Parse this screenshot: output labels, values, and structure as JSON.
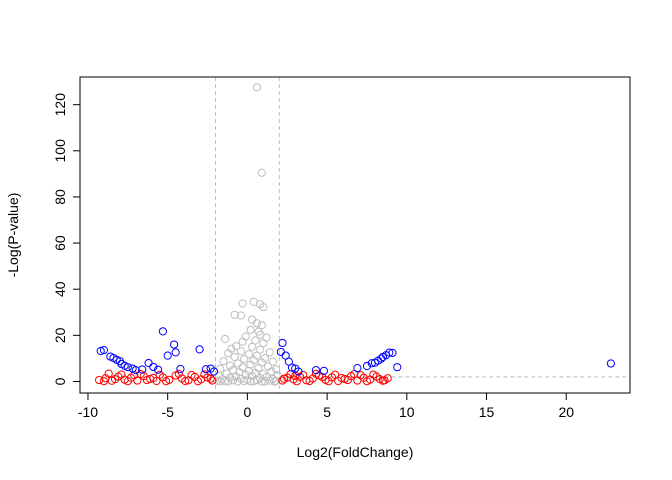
{
  "chart_data": {
    "type": "scatter",
    "title": "",
    "xlabel": "Log2(FoldChange)",
    "ylabel": "-Log(P-value)",
    "xlim": [
      -10.5,
      24
    ],
    "ylim": [
      -5,
      132
    ],
    "x_ticks": [
      -10,
      -5,
      0,
      5,
      10,
      15,
      20
    ],
    "x_tick_labels": [
      "-10",
      "-5",
      "0",
      "5",
      "10",
      "15",
      "20"
    ],
    "y_ticks": [
      0,
      20,
      40,
      60,
      80,
      100,
      120
    ],
    "y_tick_labels": [
      "0",
      "20",
      "40",
      "60",
      "80",
      "100",
      "120"
    ],
    "grid": false,
    "legend": "none",
    "marker": "open-circle",
    "threshold_lines": {
      "vertical_x": [
        -2,
        2
      ],
      "horizontal_y": 2,
      "color": "#bebebe",
      "style": "dashed"
    },
    "series": [
      {
        "color": "#bebebe",
        "points": [
          [
            0.6,
            127.5
          ],
          [
            0.9,
            90.5
          ],
          [
            -0.3,
            33.8
          ],
          [
            0.4,
            34.5
          ],
          [
            0.8,
            33.5
          ],
          [
            1.0,
            32.2
          ],
          [
            -0.8,
            28.9
          ],
          [
            -0.4,
            28.6
          ],
          [
            0.3,
            26.8
          ],
          [
            0.6,
            25.2
          ],
          [
            0.9,
            24.4
          ],
          [
            0.2,
            22.4
          ],
          [
            0.7,
            21.6
          ],
          [
            1.2,
            19.0
          ],
          [
            0.8,
            20.2
          ],
          [
            -0.1,
            19.5
          ],
          [
            -1.4,
            18.4
          ],
          [
            0.5,
            17.8
          ],
          [
            -0.3,
            17.2
          ],
          [
            1.0,
            16.6
          ],
          [
            -0.7,
            15.3
          ],
          [
            0.3,
            15.0
          ],
          [
            -1.0,
            14.2
          ],
          [
            0.8,
            13.8
          ],
          [
            -0.4,
            13.1
          ],
          [
            1.4,
            12.6
          ],
          [
            -1.2,
            12.2
          ],
          [
            0.1,
            11.8
          ],
          [
            0.6,
            11.2
          ],
          [
            -0.8,
            10.6
          ],
          [
            1.1,
            10.1
          ],
          [
            -0.2,
            9.7
          ],
          [
            0.4,
            9.2
          ],
          [
            -1.5,
            8.8
          ],
          [
            1.6,
            8.6
          ],
          [
            0.9,
            8.2
          ],
          [
            -0.6,
            7.8
          ],
          [
            0.2,
            7.3
          ],
          [
            -1.1,
            6.9
          ],
          [
            1.3,
            6.5
          ],
          [
            -0.3,
            6.1
          ],
          [
            0.7,
            5.8
          ],
          [
            -1.7,
            5.5
          ],
          [
            1.8,
            5.2
          ],
          [
            -0.9,
            4.9
          ],
          [
            0.1,
            4.6
          ],
          [
            1.5,
            4.3
          ],
          [
            -0.5,
            4.0
          ],
          [
            0.5,
            3.7
          ],
          [
            -1.3,
            3.4
          ],
          [
            1.0,
            3.2
          ],
          [
            -0.1,
            2.9
          ],
          [
            1.9,
            2.7
          ],
          [
            -1.8,
            2.5
          ],
          [
            0.3,
            2.3
          ],
          [
            -0.7,
            2.1
          ],
          [
            1.2,
            1.9
          ],
          [
            -1.1,
            1.7
          ],
          [
            0.8,
            1.5
          ],
          [
            -0.4,
            1.3
          ],
          [
            1.6,
            1.1
          ],
          [
            -1.6,
            0.9
          ],
          [
            0.0,
            0.8
          ],
          [
            0.6,
            0.6
          ],
          [
            -0.9,
            0.5
          ],
          [
            1.4,
            0.4
          ],
          [
            -1.9,
            0.3
          ],
          [
            1.8,
            0.2
          ],
          [
            -0.2,
            0.2
          ],
          [
            0.4,
            0.1
          ],
          [
            -1.4,
            0.1
          ],
          [
            1.1,
            0.0
          ],
          [
            -0.6,
            0.0
          ],
          [
            0.9,
            0.0
          ],
          [
            -1.2,
            0.0
          ],
          [
            0.2,
            0.0
          ],
          [
            1.7,
            0.0
          ],
          [
            -1.7,
            0.0
          ]
        ]
      },
      {
        "color": "#ff0000",
        "points": [
          [
            -9.3,
            0.6
          ],
          [
            -8.9,
            1.4
          ],
          [
            -8.5,
            0.3
          ],
          [
            -8.1,
            2.1
          ],
          [
            -7.7,
            0.8
          ],
          [
            -7.3,
            1.6
          ],
          [
            -6.9,
            0.4
          ],
          [
            -6.5,
            2.3
          ],
          [
            -6.1,
            1.1
          ],
          [
            -5.7,
            0.2
          ],
          [
            -5.3,
            1.8
          ],
          [
            -4.9,
            0.7
          ],
          [
            -4.5,
            2.6
          ],
          [
            -4.1,
            1.3
          ],
          [
            -3.7,
            0.5
          ],
          [
            -3.3,
            2.0
          ],
          [
            -2.9,
            0.9
          ],
          [
            -2.5,
            1.7
          ],
          [
            -2.2,
            0.4
          ],
          [
            -8.7,
            3.4
          ],
          [
            -7.9,
            3.0
          ],
          [
            -6.7,
            3.2
          ],
          [
            -5.5,
            2.9
          ],
          [
            -4.3,
            3.3
          ],
          [
            -3.5,
            2.8
          ],
          [
            -2.7,
            3.1
          ],
          [
            -9.0,
            0.1
          ],
          [
            -7.5,
            0.1
          ],
          [
            -6.3,
            0.6
          ],
          [
            -5.1,
            0.1
          ],
          [
            -3.9,
            0.2
          ],
          [
            -3.1,
            0.1
          ],
          [
            -2.3,
            1.2
          ],
          [
            -8.3,
            1.0
          ],
          [
            -7.1,
            2.7
          ],
          [
            -5.9,
            1.5
          ],
          [
            2.2,
            0.4
          ],
          [
            2.5,
            1.7
          ],
          [
            2.9,
            0.9
          ],
          [
            3.3,
            2.0
          ],
          [
            3.7,
            0.5
          ],
          [
            4.1,
            1.3
          ],
          [
            4.5,
            2.6
          ],
          [
            4.9,
            0.7
          ],
          [
            5.3,
            1.8
          ],
          [
            5.7,
            0.2
          ],
          [
            6.1,
            1.1
          ],
          [
            6.5,
            2.3
          ],
          [
            6.9,
            0.4
          ],
          [
            7.3,
            1.6
          ],
          [
            7.7,
            0.8
          ],
          [
            8.1,
            2.1
          ],
          [
            8.5,
            0.3
          ],
          [
            8.8,
            1.4
          ],
          [
            2.7,
            3.1
          ],
          [
            3.5,
            2.8
          ],
          [
            4.3,
            3.3
          ],
          [
            5.5,
            2.9
          ],
          [
            6.7,
            3.2
          ],
          [
            7.9,
            3.0
          ],
          [
            3.1,
            0.1
          ],
          [
            3.9,
            0.2
          ],
          [
            5.1,
            0.1
          ],
          [
            6.3,
            0.6
          ],
          [
            7.5,
            0.1
          ],
          [
            8.6,
            0.5
          ],
          [
            2.3,
            1.2
          ],
          [
            4.7,
            1.9
          ],
          [
            5.9,
            1.5
          ],
          [
            7.1,
            2.7
          ],
          [
            8.3,
            1.0
          ],
          [
            3.0,
            2.4
          ]
        ]
      },
      {
        "color": "#0000ff",
        "points": [
          [
            -9.2,
            13.2
          ],
          [
            -9.0,
            13.6
          ],
          [
            -8.6,
            10.8
          ],
          [
            -8.4,
            10.2
          ],
          [
            -8.2,
            9.4
          ],
          [
            -8.0,
            8.8
          ],
          [
            -7.9,
            7.6
          ],
          [
            -7.7,
            6.8
          ],
          [
            -7.5,
            6.2
          ],
          [
            -7.2,
            5.6
          ],
          [
            -7.0,
            4.9
          ],
          [
            -6.6,
            5.2
          ],
          [
            -6.2,
            8.0
          ],
          [
            -5.9,
            6.3
          ],
          [
            -5.6,
            5.1
          ],
          [
            -5.3,
            21.7
          ],
          [
            -5.0,
            11.2
          ],
          [
            -4.6,
            16.0
          ],
          [
            -4.5,
            12.6
          ],
          [
            -4.2,
            5.4
          ],
          [
            -3.0,
            13.9
          ],
          [
            -2.6,
            5.3
          ],
          [
            -2.3,
            5.6
          ],
          [
            -2.1,
            4.3
          ],
          [
            2.1,
            12.8
          ],
          [
            2.2,
            16.7
          ],
          [
            2.4,
            11.2
          ],
          [
            2.6,
            8.6
          ],
          [
            2.8,
            6.0
          ],
          [
            3.0,
            5.6
          ],
          [
            3.2,
            4.3
          ],
          [
            4.3,
            4.9
          ],
          [
            4.8,
            4.6
          ],
          [
            6.9,
            5.8
          ],
          [
            7.5,
            6.7
          ],
          [
            7.8,
            7.9
          ],
          [
            8.0,
            8.1
          ],
          [
            8.2,
            9.0
          ],
          [
            8.4,
            9.9
          ],
          [
            8.5,
            10.6
          ],
          [
            8.7,
            11.4
          ],
          [
            8.9,
            12.5
          ],
          [
            9.1,
            12.4
          ],
          [
            9.4,
            6.2
          ],
          [
            22.8,
            7.8
          ]
        ]
      }
    ]
  }
}
